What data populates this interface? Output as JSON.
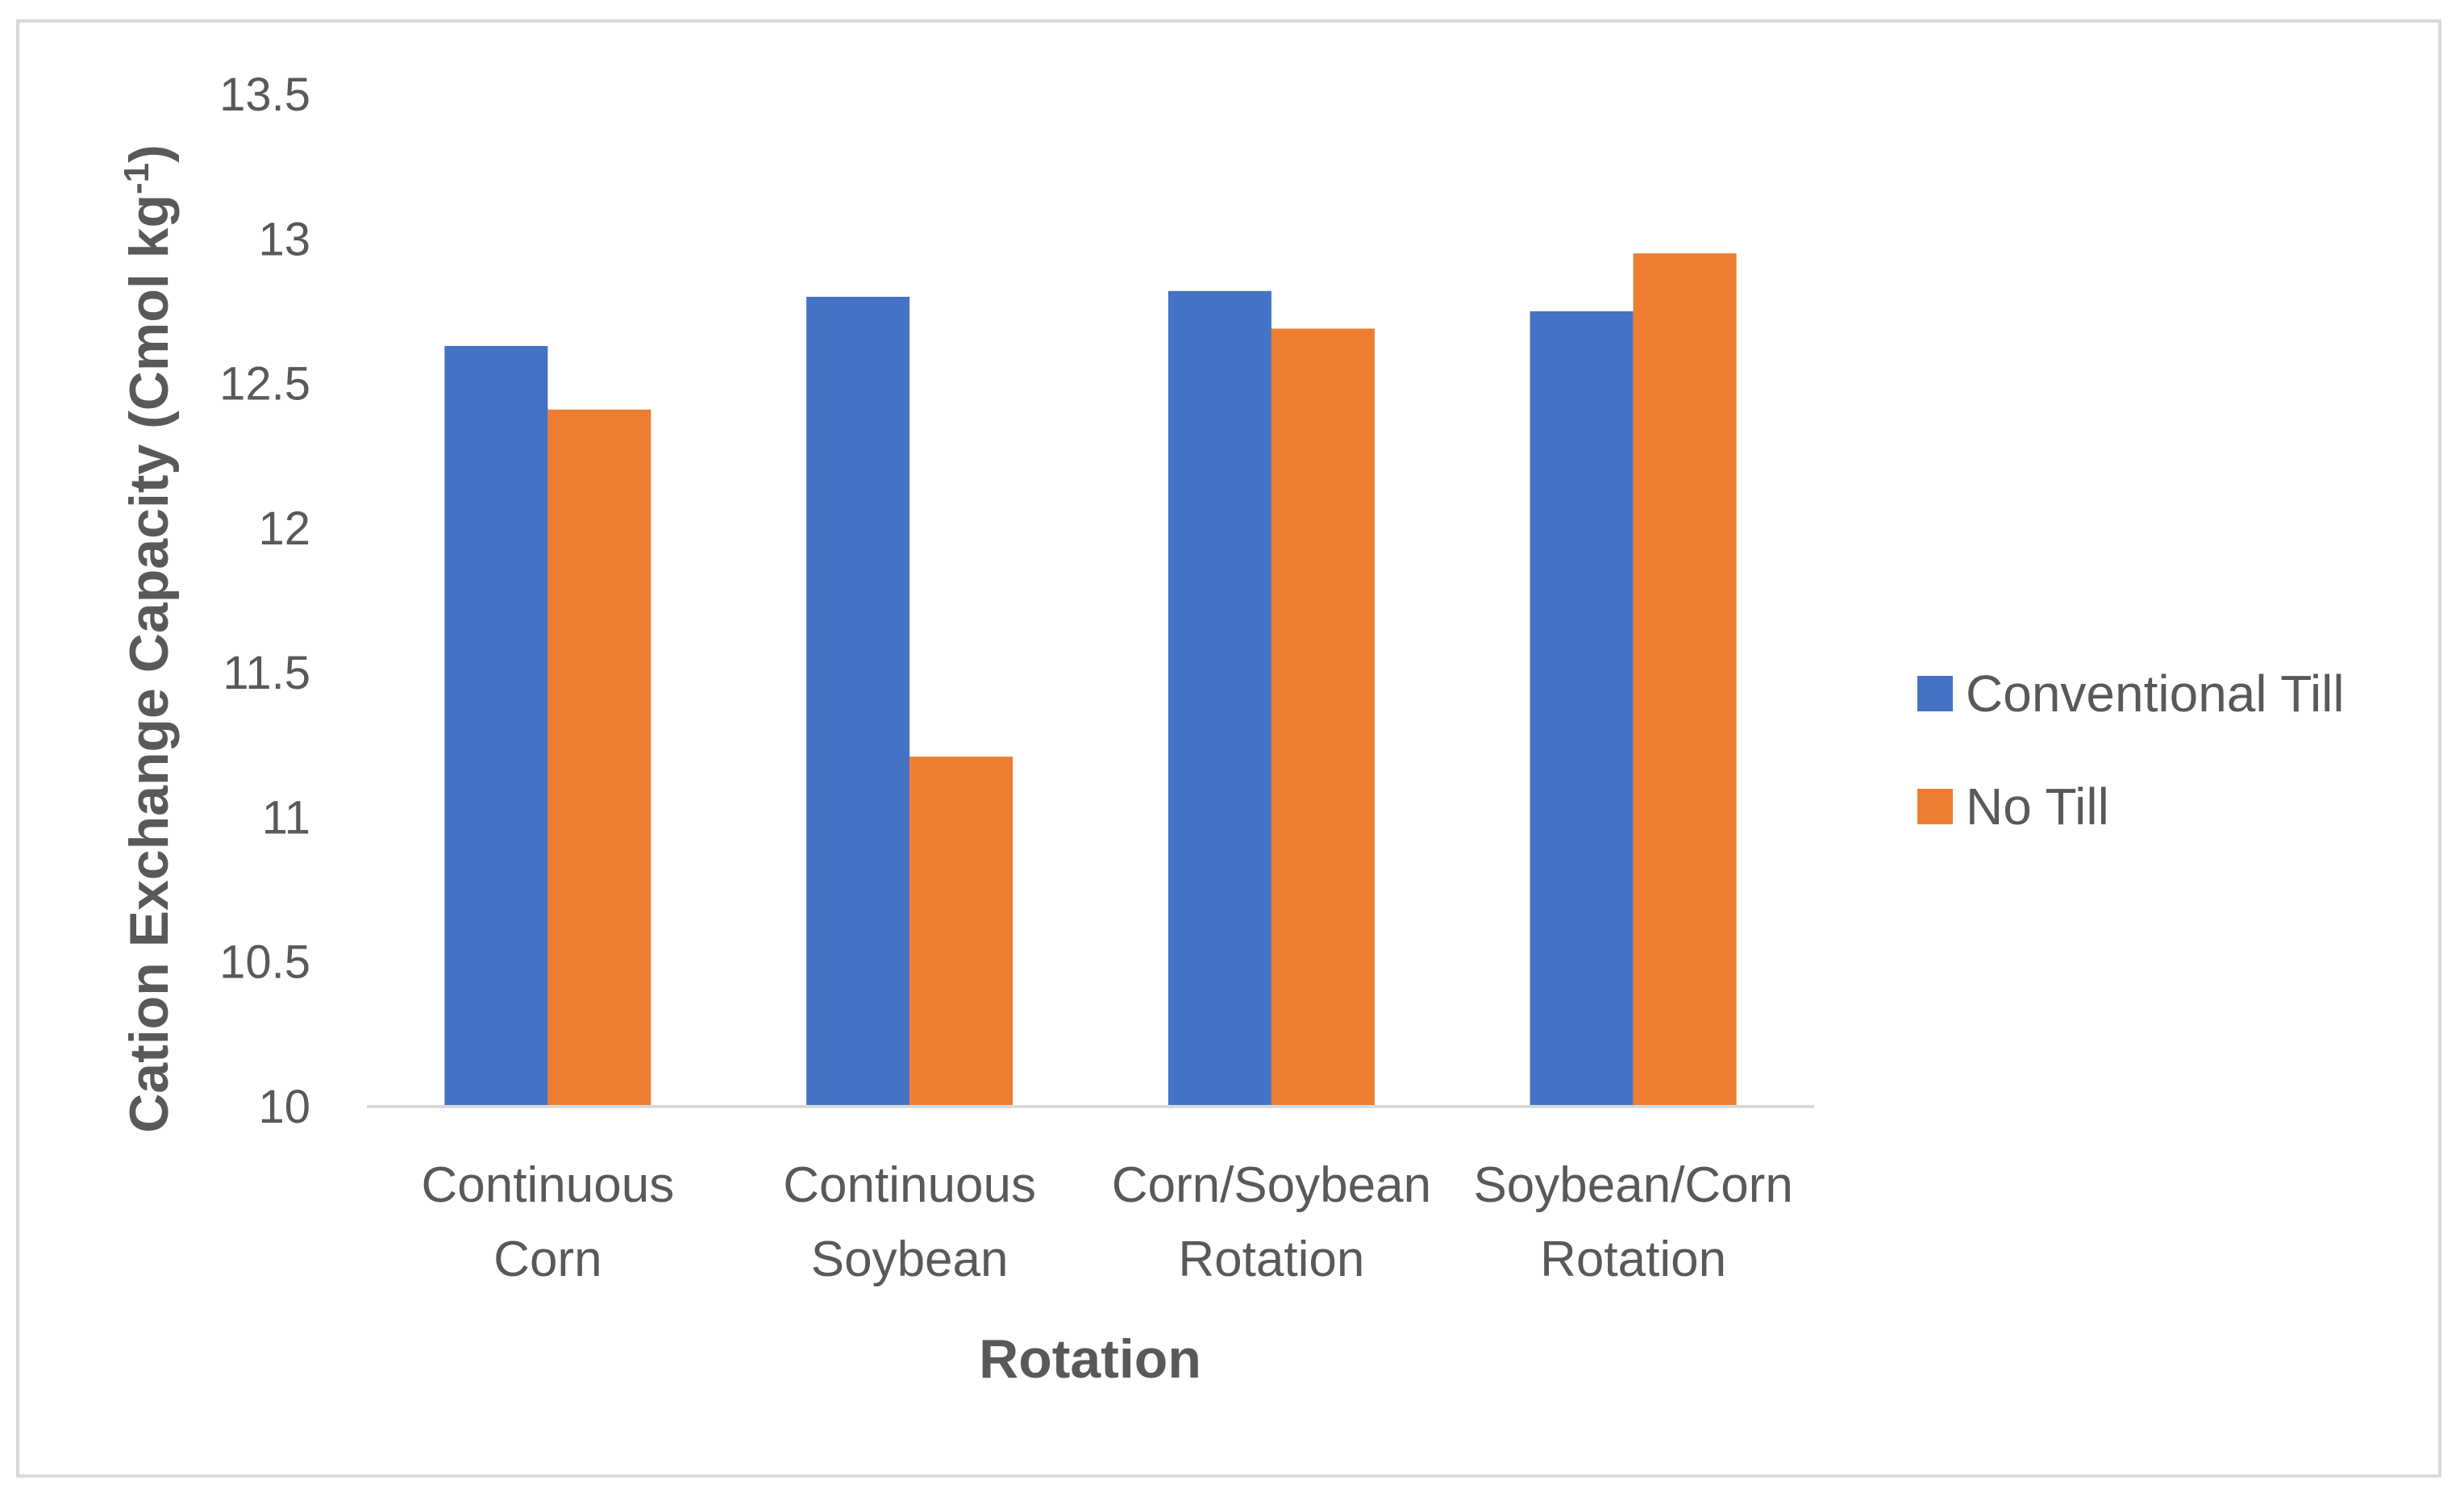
{
  "chart_data": {
    "type": "bar",
    "title": "",
    "xlabel": "Rotation",
    "ylabel": "Cation Exchange Capacity (Cmol kg",
    "ylabel_superscript": "-1",
    "ylabel_suffix": ")",
    "categories": [
      [
        "Continuous",
        "Corn"
      ],
      [
        "Continuous",
        "Soybean"
      ],
      [
        "Corn/Soybean",
        "Rotation"
      ],
      [
        "Soybean/Corn",
        "Rotation"
      ]
    ],
    "series": [
      {
        "name": "Conventional Till",
        "color": "#4472c4",
        "values": [
          12.63,
          12.8,
          12.82,
          12.75
        ]
      },
      {
        "name": "No Till",
        "color": "#ed7d31",
        "values": [
          12.41,
          11.21,
          12.69,
          12.95
        ]
      }
    ],
    "ylim": [
      10,
      13.5
    ],
    "yticks": [
      "10",
      "10.5",
      "11",
      "11.5",
      "12",
      "12.5",
      "13",
      "13.5"
    ],
    "grid": false,
    "legend": "right"
  }
}
